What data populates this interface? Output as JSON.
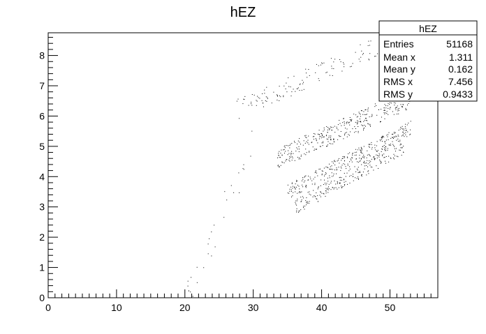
{
  "chart_data": {
    "type": "scatter",
    "title": "hEZ",
    "xlabel": "",
    "ylabel": "",
    "xlim": [
      0,
      57
    ],
    "ylim": [
      0,
      8.75
    ],
    "grid": false,
    "x_ticks": [
      0,
      10,
      20,
      30,
      40,
      50
    ],
    "y_ticks": [
      0,
      1,
      2,
      3,
      4,
      5,
      6,
      7,
      8
    ],
    "stats_box": {
      "title": "hEZ",
      "placement": "top-right",
      "rows": [
        {
          "label": "Entries",
          "value": "51168"
        },
        {
          "label": "Mean x",
          "value": "1.311"
        },
        {
          "label": "Mean y",
          "value": "0.162"
        },
        {
          "label": "RMS x",
          "value": "7.456"
        },
        {
          "label": "RMS y",
          "value": "0.9433"
        }
      ]
    },
    "series": [
      {
        "marker_color": "#000000",
        "bands": [
          {
            "x": [
              27.5,
              53
            ],
            "y": [
              6.2,
              8.8
            ],
            "width": 0.35,
            "density": 6
          },
          {
            "x": [
              33.5,
              53
            ],
            "y": [
              4.6,
              6.6
            ],
            "width": 0.35,
            "density": 18
          },
          {
            "x": [
              35,
              53
            ],
            "y": [
              3.5,
              5.6
            ],
            "width": 0.25,
            "density": 16
          },
          {
            "x": [
              36,
              52
            ],
            "y": [
              3.0,
              5.0
            ],
            "width": 0.25,
            "density": 14
          },
          {
            "x": [
              20,
              30
            ],
            "y": [
              0.0,
              5.0
            ],
            "width": 0.7,
            "density": 3
          }
        ]
      }
    ]
  }
}
